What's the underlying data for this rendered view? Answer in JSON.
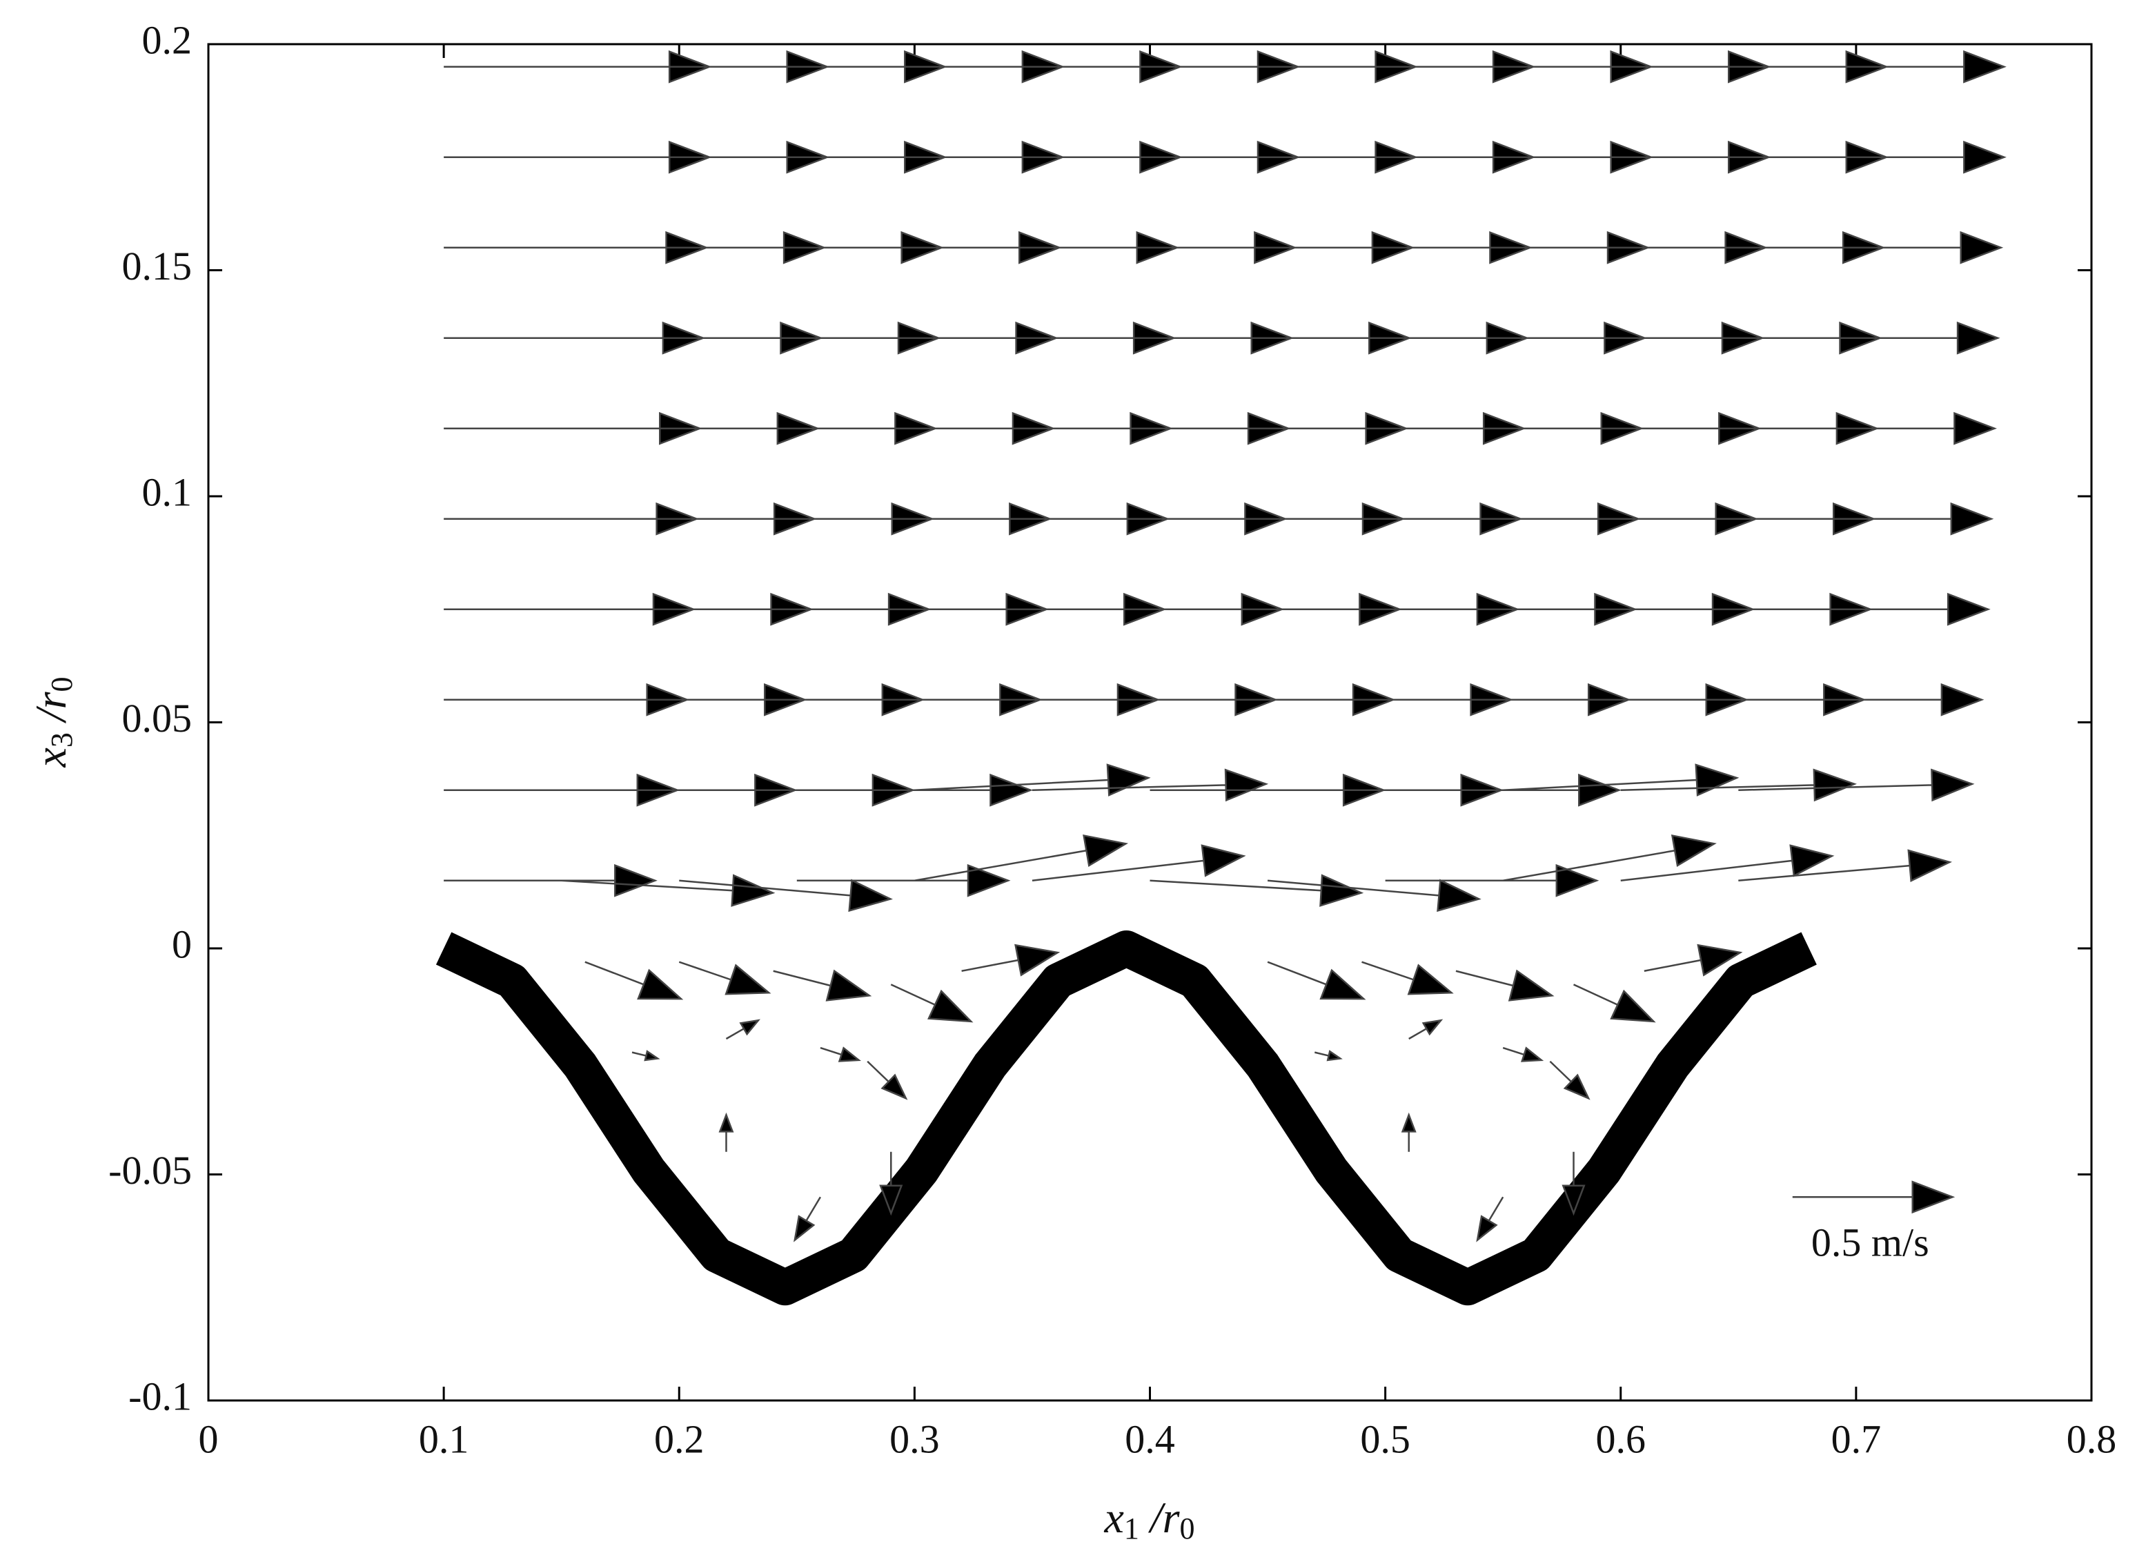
{
  "chart_data": {
    "type": "quiver",
    "xlim": [
      0,
      0.8
    ],
    "ylim": [
      -0.1,
      0.2
    ],
    "xticks": [
      0,
      0.1,
      0.2,
      0.3,
      0.4,
      0.5,
      0.6,
      0.7,
      0.8
    ],
    "yticks": [
      -0.1,
      -0.05,
      0,
      0.05,
      0.1,
      0.15,
      0.2
    ],
    "xlabel": [
      "x",
      "1",
      " /r",
      "0"
    ],
    "ylabel": [
      "x",
      "3",
      " /r",
      "0"
    ],
    "color": "#000000",
    "reference": {
      "value": 0.5,
      "label": "0.5 m/s"
    },
    "rows": [
      {
        "y": 0.195,
        "x": [
          0.1,
          0.15,
          0.2,
          0.25,
          0.3,
          0.35,
          0.4,
          0.45,
          0.5,
          0.55,
          0.6,
          0.65
        ],
        "u": [
          0.83,
          0.83,
          0.83,
          0.83,
          0.83,
          0.83,
          0.83,
          0.83,
          0.83,
          0.83,
          0.83,
          0.83
        ],
        "v": [
          0,
          0,
          0,
          0,
          0,
          0,
          0,
          0,
          0,
          0,
          0,
          0
        ]
      },
      {
        "y": 0.175,
        "x": [
          0.1,
          0.15,
          0.2,
          0.25,
          0.3,
          0.35,
          0.4,
          0.45,
          0.5,
          0.55,
          0.6,
          0.65
        ],
        "u": [
          0.83,
          0.83,
          0.83,
          0.83,
          0.83,
          0.83,
          0.83,
          0.83,
          0.83,
          0.83,
          0.83,
          0.83
        ],
        "v": [
          0,
          0,
          0,
          0,
          0,
          0,
          0,
          0,
          0,
          0,
          0,
          0
        ]
      },
      {
        "y": 0.155,
        "x": [
          0.1,
          0.15,
          0.2,
          0.25,
          0.3,
          0.35,
          0.4,
          0.45,
          0.5,
          0.55,
          0.6,
          0.65
        ],
        "u": [
          0.82,
          0.82,
          0.82,
          0.82,
          0.82,
          0.82,
          0.82,
          0.82,
          0.82,
          0.82,
          0.82,
          0.82
        ],
        "v": [
          0,
          0,
          0,
          0,
          0,
          0,
          0,
          0,
          0,
          0,
          0,
          0
        ]
      },
      {
        "y": 0.135,
        "x": [
          0.1,
          0.15,
          0.2,
          0.25,
          0.3,
          0.35,
          0.4,
          0.45,
          0.5,
          0.55,
          0.6,
          0.65
        ],
        "u": [
          0.81,
          0.81,
          0.81,
          0.81,
          0.81,
          0.81,
          0.81,
          0.81,
          0.81,
          0.81,
          0.81,
          0.81
        ],
        "v": [
          0,
          0,
          0,
          0,
          0,
          0,
          0,
          0,
          0,
          0,
          0,
          0
        ]
      },
      {
        "y": 0.115,
        "x": [
          0.1,
          0.15,
          0.2,
          0.25,
          0.3,
          0.35,
          0.4,
          0.45,
          0.5,
          0.55,
          0.6,
          0.65
        ],
        "u": [
          0.8,
          0.8,
          0.8,
          0.8,
          0.8,
          0.8,
          0.8,
          0.8,
          0.8,
          0.8,
          0.8,
          0.8
        ],
        "v": [
          0,
          0,
          0,
          0,
          0,
          0,
          0,
          0,
          0,
          0,
          0,
          0
        ]
      },
      {
        "y": 0.095,
        "x": [
          0.1,
          0.15,
          0.2,
          0.25,
          0.3,
          0.35,
          0.4,
          0.45,
          0.5,
          0.55,
          0.6,
          0.65
        ],
        "u": [
          0.79,
          0.79,
          0.79,
          0.79,
          0.79,
          0.79,
          0.79,
          0.79,
          0.79,
          0.79,
          0.79,
          0.79
        ],
        "v": [
          0,
          0,
          0,
          0,
          0,
          0,
          0,
          0,
          0,
          0,
          0,
          0
        ]
      },
      {
        "y": 0.075,
        "x": [
          0.1,
          0.15,
          0.2,
          0.25,
          0.3,
          0.35,
          0.4,
          0.45,
          0.5,
          0.55,
          0.6,
          0.65
        ],
        "u": [
          0.78,
          0.78,
          0.78,
          0.78,
          0.78,
          0.78,
          0.78,
          0.78,
          0.78,
          0.78,
          0.78,
          0.78
        ],
        "v": [
          0,
          0,
          0,
          0,
          0,
          0,
          0,
          0,
          0,
          0,
          0,
          0
        ]
      },
      {
        "y": 0.055,
        "x": [
          0.1,
          0.15,
          0.2,
          0.25,
          0.3,
          0.35,
          0.4,
          0.45,
          0.5,
          0.55,
          0.6,
          0.65
        ],
        "u": [
          0.76,
          0.76,
          0.76,
          0.76,
          0.76,
          0.76,
          0.76,
          0.76,
          0.76,
          0.76,
          0.76,
          0.76
        ],
        "v": [
          0,
          0,
          0,
          0,
          0,
          0,
          0,
          0,
          0,
          0,
          0,
          0
        ]
      },
      {
        "y": 0.035,
        "x": [
          0.1,
          0.15,
          0.2,
          0.25,
          0.3,
          0.35,
          0.4,
          0.45,
          0.5,
          0.55,
          0.6,
          0.65
        ],
        "u": [
          0.73,
          0.73,
          0.73,
          0.73,
          0.73,
          0.73,
          0.73,
          0.73,
          0.73,
          0.73,
          0.73,
          0.73
        ],
        "v": [
          0,
          0,
          0,
          0,
          0.02,
          0.01,
          0,
          0,
          0,
          0.02,
          0.01,
          0.01
        ]
      },
      {
        "y": 0.015,
        "x": [
          0.1,
          0.15,
          0.2,
          0.25,
          0.3,
          0.35,
          0.4,
          0.45,
          0.5,
          0.55,
          0.6,
          0.65
        ],
        "u": [
          0.66,
          0.66,
          0.66,
          0.66,
          0.66,
          0.66,
          0.66,
          0.66,
          0.66,
          0.66,
          0.66,
          0.66
        ],
        "v": [
          0,
          -0.02,
          -0.03,
          0,
          0.06,
          0.04,
          -0.02,
          -0.03,
          0,
          0.06,
          0.04,
          0.03
        ]
      }
    ],
    "eddies": {
      "x": [
        0.16,
        0.2,
        0.24,
        0.29,
        0.32,
        0.45,
        0.49,
        0.53,
        0.58,
        0.61,
        0.18,
        0.22,
        0.26,
        0.28,
        0.47,
        0.51,
        0.55,
        0.57,
        0.22,
        0.26,
        0.29,
        0.51,
        0.55,
        0.58
      ],
      "y": [
        -0.003,
        -0.003,
        -0.005,
        -0.008,
        -0.005,
        -0.003,
        -0.003,
        -0.005,
        -0.008,
        -0.005,
        -0.023,
        -0.02,
        -0.022,
        -0.025,
        -0.023,
        -0.02,
        -0.022,
        -0.025,
        -0.045,
        -0.055,
        -0.045,
        -0.045,
        -0.055,
        -0.045
      ],
      "u": [
        0.3,
        0.28,
        0.3,
        0.25,
        0.3,
        0.3,
        0.28,
        0.3,
        0.25,
        0.3,
        0.08,
        0.1,
        0.12,
        0.12,
        0.08,
        0.1,
        0.12,
        0.12,
        0,
        -0.08,
        0,
        0,
        -0.08,
        0
      ],
      "v": [
        -0.06,
        -0.05,
        -0.04,
        -0.06,
        0.03,
        -0.06,
        -0.05,
        -0.04,
        -0.06,
        0.03,
        -0.01,
        0.03,
        -0.02,
        -0.06,
        -0.01,
        0.03,
        -0.02,
        -0.06,
        0.06,
        -0.07,
        -0.1,
        0.06,
        -0.07,
        -0.1
      ]
    },
    "surface": {
      "x": [
        0.1,
        0.129,
        0.158,
        0.187,
        0.216,
        0.245,
        0.274,
        0.303,
        0.332,
        0.361,
        0.39,
        0.419,
        0.448,
        0.477,
        0.506,
        0.535,
        0.564,
        0.593,
        0.622,
        0.651,
        0.68
      ],
      "y": [
        0,
        -0.0072,
        -0.0259,
        -0.0491,
        -0.0678,
        -0.075,
        -0.0678,
        -0.0491,
        -0.0259,
        -0.0072,
        0,
        -0.0072,
        -0.0259,
        -0.0491,
        -0.0678,
        -0.075,
        -0.0678,
        -0.0491,
        -0.0259,
        -0.0072,
        0
      ]
    }
  }
}
